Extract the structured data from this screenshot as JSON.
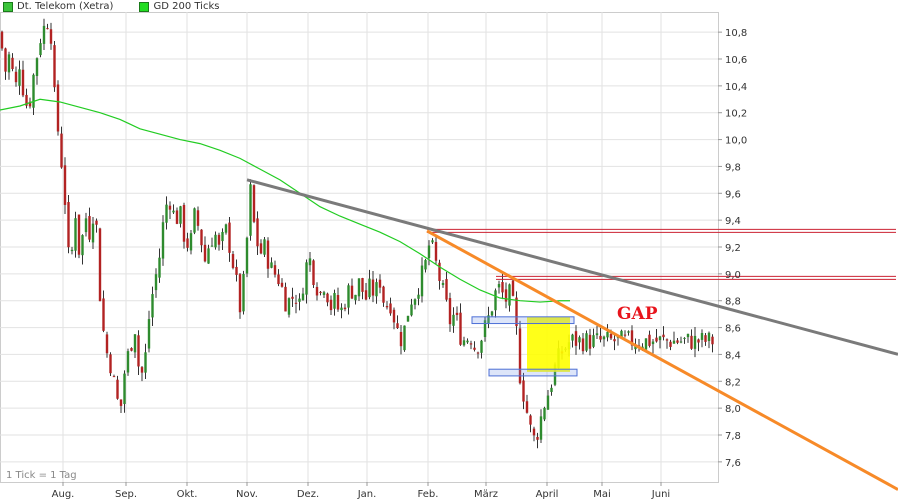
{
  "legend": {
    "items": [
      {
        "label": "Dt. Telekom (Xetra)",
        "color": "#3cc43c"
      },
      {
        "label": "GD 200 Ticks",
        "color": "#22dd22"
      }
    ]
  },
  "footer_note": "1 Tick = 1 Tag",
  "colors": {
    "candle_up": "#2e8b2e",
    "candle_down": "#b22222",
    "wick": "#333333",
    "ma_line": "#22cc22",
    "grid": "#e2e2e2",
    "trend_gray": "#7a7a7a",
    "trend_orange": "#f78a28",
    "resistance": "#cc2233",
    "gap_fill": "#ffff00",
    "support_box": "#4d6fd6",
    "gap_text": "#e8141c"
  },
  "chart_data": {
    "type": "candlestick",
    "title": "",
    "xlabel": "",
    "ylabel": "",
    "ylim": [
      7.45,
      10.95
    ],
    "y_ticks": [
      7.6,
      7.8,
      8.0,
      8.2,
      8.4,
      8.6,
      8.8,
      9.0,
      9.2,
      9.4,
      9.6,
      9.8,
      10.0,
      10.2,
      10.4,
      10.6,
      10.8
    ],
    "y_tick_labels": [
      "7,6",
      "7,8",
      "8,0",
      "8,2",
      "8,4",
      "8,6",
      "8,8",
      "9,0",
      "9,2",
      "9,4",
      "9,6",
      "9,8",
      "10,0",
      "10,2",
      "10,4",
      "10,6",
      "10,8"
    ],
    "x_months": [
      "Aug.",
      "Sep.",
      "Okt.",
      "Nov.",
      "Dez.",
      "Jan.",
      "Feb.",
      "März",
      "April",
      "Mai",
      "Juni"
    ],
    "grid": true,
    "close_path": [
      [
        0,
        10.8
      ],
      [
        5,
        10.5
      ],
      [
        10,
        10.65
      ],
      [
        15,
        10.35
      ],
      [
        20,
        10.6
      ],
      [
        25,
        10.25
      ],
      [
        30,
        10.3
      ],
      [
        35,
        10.55
      ],
      [
        40,
        10.75
      ],
      [
        45,
        10.85
      ],
      [
        50,
        10.92
      ],
      [
        55,
        10.25
      ],
      [
        60,
        9.95
      ],
      [
        65,
        9.55
      ],
      [
        70,
        8.95
      ],
      [
        75,
        9.5
      ],
      [
        80,
        9.1
      ],
      [
        85,
        9.45
      ],
      [
        90,
        9.3
      ],
      [
        95,
        9.55
      ],
      [
        100,
        8.85
      ],
      [
        105,
        8.45
      ],
      [
        110,
        8.35
      ],
      [
        115,
        8.15
      ],
      [
        120,
        7.95
      ],
      [
        125,
        8.3
      ],
      [
        130,
        8.45
      ],
      [
        135,
        8.6
      ],
      [
        140,
        8.2
      ],
      [
        145,
        8.35
      ],
      [
        150,
        8.75
      ],
      [
        155,
        8.95
      ],
      [
        160,
        9.15
      ],
      [
        165,
        9.5
      ],
      [
        170,
        9.55
      ],
      [
        175,
        9.4
      ],
      [
        180,
        9.45
      ],
      [
        185,
        9.25
      ],
      [
        190,
        9.2
      ],
      [
        195,
        9.45
      ],
      [
        200,
        9.3
      ],
      [
        205,
        9.1
      ],
      [
        210,
        9.25
      ],
      [
        215,
        9.3
      ],
      [
        220,
        9.15
      ],
      [
        225,
        9.35
      ],
      [
        230,
        9.2
      ],
      [
        235,
        9.0
      ],
      [
        240,
        8.75
      ],
      [
        245,
        9.0
      ],
      [
        250,
        9.65
      ],
      [
        255,
        9.3
      ],
      [
        260,
        9.15
      ],
      [
        265,
        9.2
      ],
      [
        270,
        9.05
      ],
      [
        275,
        9.0
      ],
      [
        280,
        8.95
      ],
      [
        285,
        8.8
      ],
      [
        290,
        8.8
      ],
      [
        295,
        8.85
      ],
      [
        300,
        8.75
      ],
      [
        305,
        9.05
      ],
      [
        310,
        9.1
      ],
      [
        315,
        8.95
      ],
      [
        320,
        8.85
      ],
      [
        325,
        8.95
      ],
      [
        330,
        8.75
      ],
      [
        335,
        8.8
      ],
      [
        340,
        8.7
      ],
      [
        345,
        8.8
      ],
      [
        350,
        8.9
      ],
      [
        355,
        8.85
      ],
      [
        360,
        8.95
      ],
      [
        365,
        8.8
      ],
      [
        370,
        8.9
      ],
      [
        375,
        8.85
      ],
      [
        380,
        8.95
      ],
      [
        385,
        8.75
      ],
      [
        390,
        8.8
      ],
      [
        395,
        8.65
      ],
      [
        400,
        8.5
      ],
      [
        405,
        8.6
      ],
      [
        410,
        8.8
      ],
      [
        415,
        8.85
      ],
      [
        420,
        8.95
      ],
      [
        425,
        9.05
      ],
      [
        430,
        9.25
      ],
      [
        435,
        9.1
      ],
      [
        440,
        8.95
      ],
      [
        445,
        8.8
      ],
      [
        450,
        8.65
      ],
      [
        455,
        8.7
      ],
      [
        460,
        8.55
      ],
      [
        465,
        8.5
      ],
      [
        470,
        8.55
      ],
      [
        475,
        8.45
      ],
      [
        480,
        8.5
      ],
      [
        485,
        8.6
      ],
      [
        490,
        8.7
      ],
      [
        495,
        8.85
      ],
      [
        500,
        8.9
      ],
      [
        505,
        8.8
      ],
      [
        510,
        8.85
      ],
      [
        515,
        8.7
      ],
      [
        520,
        8.25
      ],
      [
        525,
        8.05
      ],
      [
        530,
        7.85
      ],
      [
        535,
        7.75
      ],
      [
        540,
        7.9
      ],
      [
        545,
        8.05
      ],
      [
        550,
        8.15
      ],
      [
        555,
        8.3
      ],
      [
        560,
        8.4
      ],
      [
        565,
        8.45
      ],
      [
        570,
        8.5
      ]
    ],
    "ma_path": [
      [
        0,
        10.22
      ],
      [
        20,
        10.25
      ],
      [
        40,
        10.3
      ],
      [
        60,
        10.28
      ],
      [
        80,
        10.24
      ],
      [
        100,
        10.2
      ],
      [
        120,
        10.15
      ],
      [
        140,
        10.08
      ],
      [
        160,
        10.04
      ],
      [
        180,
        10.0
      ],
      [
        200,
        9.97
      ],
      [
        220,
        9.92
      ],
      [
        240,
        9.86
      ],
      [
        260,
        9.78
      ],
      [
        280,
        9.7
      ],
      [
        300,
        9.6
      ],
      [
        320,
        9.5
      ],
      [
        340,
        9.43
      ],
      [
        360,
        9.37
      ],
      [
        380,
        9.31
      ],
      [
        400,
        9.24
      ],
      [
        420,
        9.15
      ],
      [
        440,
        9.05
      ],
      [
        460,
        8.96
      ],
      [
        480,
        8.88
      ],
      [
        500,
        8.82
      ],
      [
        520,
        8.8
      ],
      [
        540,
        8.79
      ],
      [
        560,
        8.8
      ],
      [
        570,
        8.8
      ]
    ],
    "trendlines": [
      {
        "id": "gray",
        "from": [
          247,
          9.7
        ],
        "to": [
          718,
          8.76
        ]
      },
      {
        "id": "orange",
        "from": [
          427,
          9.32
        ],
        "to": [
          718,
          8.13
        ]
      }
    ],
    "resistance_levels": [
      {
        "id": "r1",
        "y": 9.32,
        "x_from": 427,
        "x_to": 718
      },
      {
        "id": "r2",
        "y": 8.97,
        "x_from": 496,
        "x_to": 718
      }
    ],
    "gap_zone": {
      "x_from": 527,
      "x_to": 570,
      "y_low": 8.27,
      "y_high": 8.68,
      "label": "GAP"
    },
    "support_boxes": [
      {
        "x_from": 472,
        "x_to": 574,
        "y_low": 8.63,
        "y_high": 8.68
      },
      {
        "x_from": 489,
        "x_to": 577,
        "y_low": 8.24,
        "y_high": 8.29
      }
    ]
  }
}
